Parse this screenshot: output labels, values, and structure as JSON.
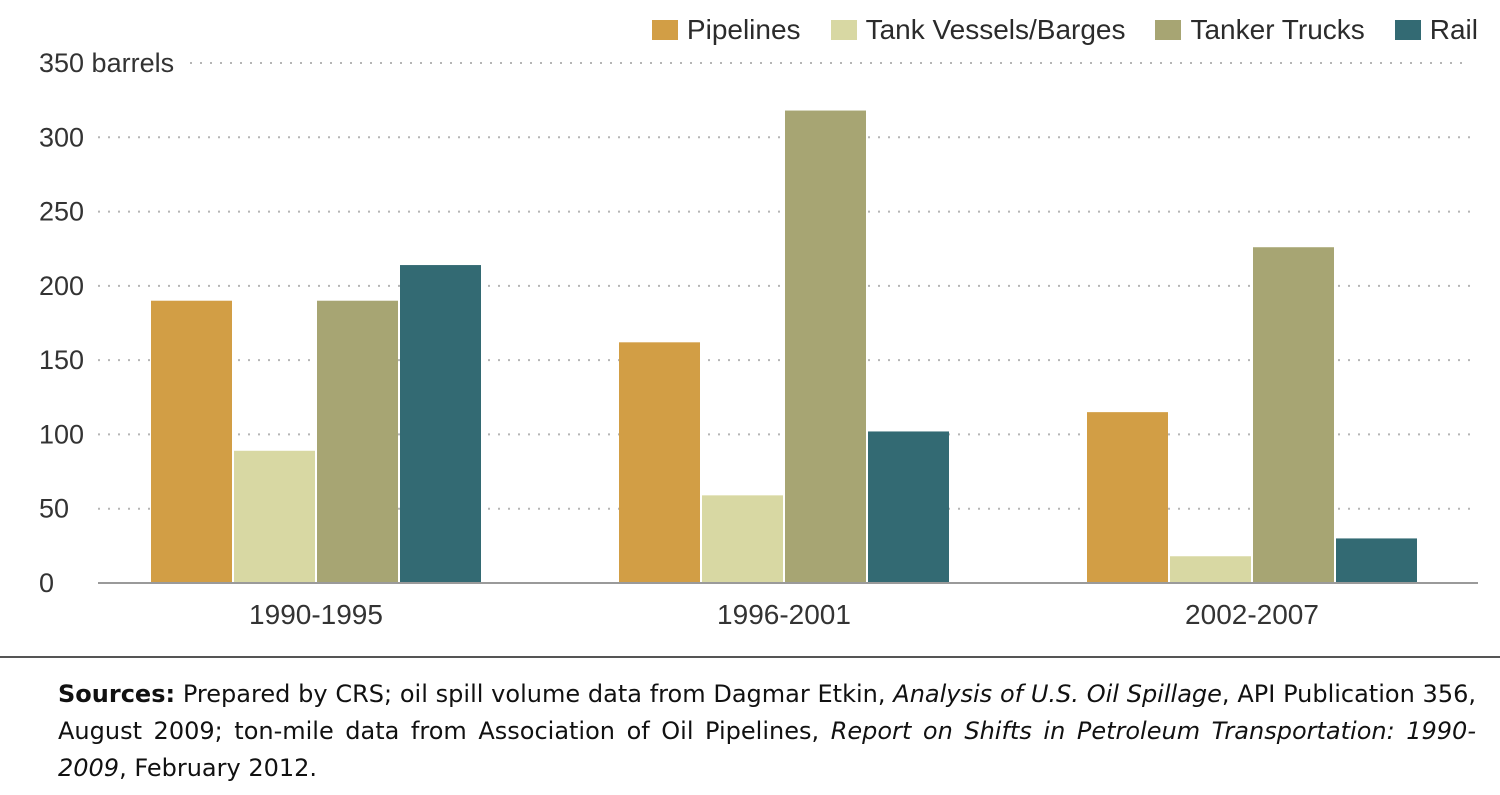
{
  "chart_data": {
    "type": "bar",
    "categories": [
      "1990-1995",
      "1996-2001",
      "2002-2007"
    ],
    "series": [
      {
        "name": "Pipelines",
        "color": "#d29e45",
        "values": [
          190,
          162,
          115
        ]
      },
      {
        "name": "Tank Vessels/Barges",
        "color": "#d8d8a3",
        "values": [
          89,
          59,
          18
        ]
      },
      {
        "name": "Tanker Trucks",
        "color": "#a7a573",
        "values": [
          190,
          318,
          226
        ]
      },
      {
        "name": "Rail",
        "color": "#336a73",
        "values": [
          214,
          102,
          30
        ]
      }
    ],
    "ylim": [
      0,
      350
    ],
    "yticks": [
      0,
      50,
      100,
      150,
      200,
      250,
      300,
      350
    ],
    "ytick_labels": [
      "0",
      "50",
      "100",
      "150",
      "200",
      "250",
      "300",
      "350 barrels"
    ],
    "grid": true,
    "legend": "top-right"
  },
  "sources": {
    "label": "Sources:",
    "part1": " Prepared by CRS; oil spill volume data from Dagmar Etkin, ",
    "title1": "Analysis of U.S. Oil Spillage",
    "part2": ", API Publication 356, August 2009; ton-mile data from Association of Oil Pipelines, ",
    "title2": "Report on Shifts in Petroleum Transportation: 1990-2009",
    "part3": ", February 2012."
  }
}
